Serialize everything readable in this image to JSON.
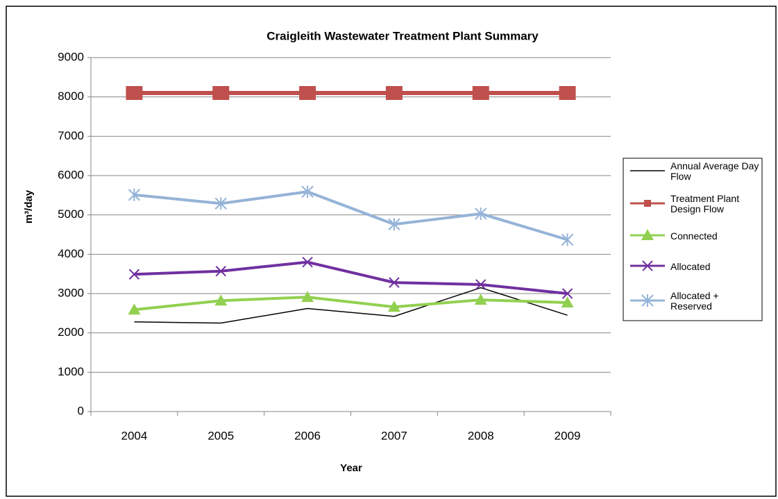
{
  "chart_data": {
    "type": "line",
    "title": "Craigleith Wastewater Treatment Plant Summary",
    "x_label": "Year",
    "y_label": "m³/day",
    "categories": [
      "2004",
      "2005",
      "2006",
      "2007",
      "2008",
      "2009"
    ],
    "series": [
      {
        "name": "Annual Average Day Flow",
        "color": "#000000",
        "marker": "none",
        "values": [
          2280,
          2250,
          2620,
          2420,
          3150,
          2450
        ]
      },
      {
        "name": "Treatment Plant Design Flow",
        "color": "#c0504d",
        "marker": "square",
        "values": [
          8100,
          8100,
          8100,
          8100,
          8100,
          8100
        ]
      },
      {
        "name": "Connected",
        "color": "#92d050",
        "marker": "triangle",
        "values": [
          2590,
          2820,
          2910,
          2660,
          2840,
          2770
        ]
      },
      {
        "name": "Allocated",
        "color": "#7030a0",
        "marker": "x",
        "values": [
          3490,
          3570,
          3800,
          3280,
          3230,
          3000
        ]
      },
      {
        "name": "Allocated + Reserved",
        "color": "#95b3d7",
        "marker": "star",
        "values": [
          5510,
          5290,
          5590,
          4760,
          5030,
          4370
        ]
      }
    ],
    "ylim": [
      0,
      9000
    ],
    "yticks": [
      0,
      1000,
      2000,
      3000,
      4000,
      5000,
      6000,
      7000,
      8000,
      9000
    ],
    "grid": true,
    "legend": "right"
  }
}
